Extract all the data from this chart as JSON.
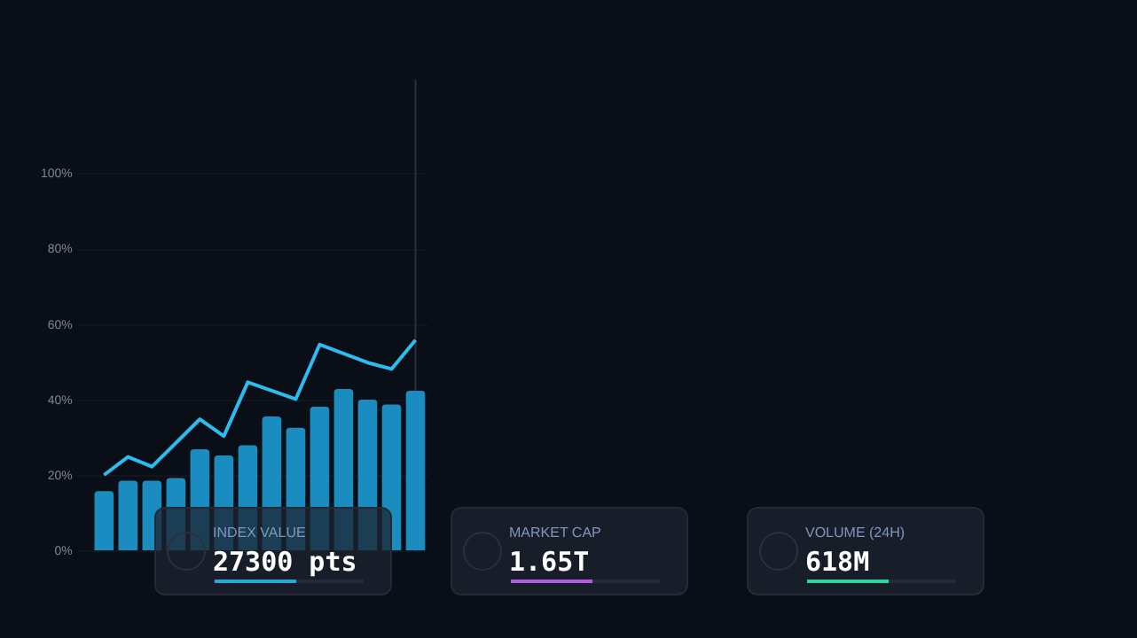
{
  "chart_data": {
    "type": "bar",
    "categories": [
      null,
      null,
      null,
      null,
      null,
      null,
      null,
      null,
      null,
      null,
      null,
      null,
      null,
      null
    ],
    "series": [
      {
        "color": "#1a8cc0",
        "values": [
          15.9,
          18.7,
          18.7,
          19.4,
          27,
          25.4,
          28.1,
          35.7,
          32.7,
          38.3,
          43,
          40.2,
          38.9,
          42.5
        ]
      },
      {
        "type": "line",
        "color": "#2bbcf0",
        "values": [
          20.2,
          25,
          22.4,
          null,
          35,
          30.5,
          44.8,
          null,
          40.3,
          54.8,
          null,
          50,
          48.3,
          56
        ]
      }
    ],
    "ylim": [
      0,
      125
    ],
    "yticks": [
      {
        "value": 0,
        "label": "0%"
      },
      {
        "value": 20,
        "label": "20%"
      },
      {
        "value": 40,
        "label": "40%"
      },
      {
        "value": 60,
        "label": "60%"
      },
      {
        "value": 80,
        "label": "80%"
      },
      {
        "value": 100,
        "label": "100%"
      }
    ],
    "tick_labels": "y",
    "grid": "y",
    "legend": false,
    "annotations": [
      "INDEX VALUE",
      "27300 pts",
      "MARKET CAP",
      "1.65T",
      "VOLUME (24H)",
      "618M"
    ]
  }
}
